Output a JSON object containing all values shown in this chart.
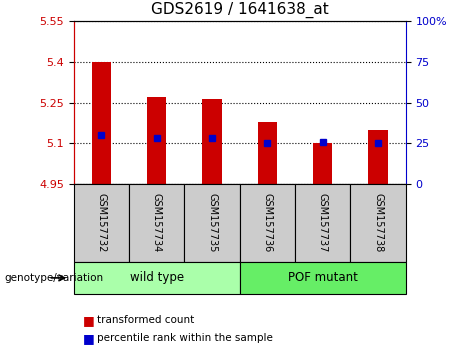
{
  "title": "GDS2619 / 1641638_at",
  "samples": [
    "GSM157732",
    "GSM157734",
    "GSM157735",
    "GSM157736",
    "GSM157737",
    "GSM157738"
  ],
  "bar_values": [
    5.4,
    5.27,
    5.265,
    5.18,
    5.1,
    5.15
  ],
  "percentile_values": [
    5.13,
    5.12,
    5.12,
    5.1,
    5.105,
    5.103
  ],
  "y_min": 4.95,
  "y_max": 5.55,
  "y_ticks_left": [
    4.95,
    5.1,
    5.25,
    5.4,
    5.55
  ],
  "y_ticks_right": [
    0,
    25,
    50,
    75,
    100
  ],
  "bar_color": "#cc0000",
  "percentile_color": "#0000cc",
  "groups": [
    {
      "label": "wild type",
      "indices": [
        0,
        1,
        2
      ],
      "color": "#aaffaa"
    },
    {
      "label": "POF mutant",
      "indices": [
        3,
        4,
        5
      ],
      "color": "#66ee66"
    }
  ],
  "group_label": "genotype/variation",
  "legend_items": [
    {
      "label": "transformed count",
      "color": "#cc0000"
    },
    {
      "label": "percentile rank within the sample",
      "color": "#0000cc"
    }
  ],
  "tick_label_color_left": "#cc0000",
  "tick_label_color_right": "#0000cc",
  "sample_box_color": "#cccccc",
  "bar_width": 0.35,
  "figsize": [
    4.61,
    3.54
  ],
  "dpi": 100
}
